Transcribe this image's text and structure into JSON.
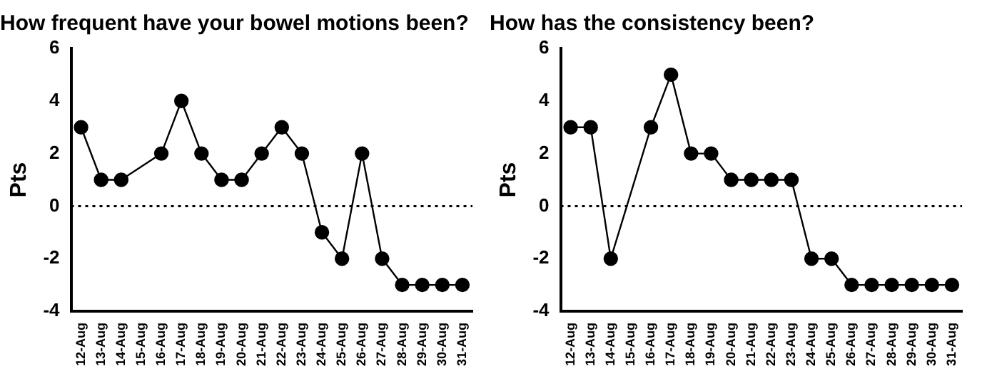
{
  "chart_data": [
    {
      "type": "line",
      "title": "How frequent have your bowel motions been?",
      "ylabel": "Pts",
      "categories": [
        "12-Aug",
        "13-Aug",
        "14-Aug",
        "15-Aug",
        "16-Aug",
        "17-Aug",
        "18-Aug",
        "19-Aug",
        "20-Aug",
        "21-Aug",
        "22-Aug",
        "23-Aug",
        "24-Aug",
        "25-Aug",
        "26-Aug",
        "27-Aug",
        "28-Aug",
        "29-Aug",
        "30-Aug",
        "31-Aug"
      ],
      "series": [
        {
          "color": "#000000",
          "values": [
            3,
            1,
            1,
            null,
            2,
            4,
            2,
            1,
            1,
            2,
            3,
            2,
            -1,
            -2,
            2,
            -2,
            -3,
            -3,
            -3,
            -3
          ]
        }
      ],
      "ylim": [
        -4,
        6
      ],
      "yticks": [
        -4,
        -2,
        0,
        2,
        4,
        6
      ],
      "grid": false,
      "legend": false,
      "marker": "circle",
      "line_style": "solid",
      "ref_lines": [
        {
          "axis": "y",
          "value": 0,
          "line_style": "dotted",
          "color": "#000000"
        }
      ]
    },
    {
      "type": "line",
      "title": "How has the consistency been?",
      "ylabel": "Pts",
      "categories": [
        "12-Aug",
        "13-Aug",
        "14-Aug",
        "15-Aug",
        "16-Aug",
        "17-Aug",
        "18-Aug",
        "19-Aug",
        "20-Aug",
        "21-Aug",
        "22-Aug",
        "23-Aug",
        "24-Aug",
        "25-Aug",
        "26-Aug",
        "27-Aug",
        "28-Aug",
        "29-Aug",
        "30-Aug",
        "31-Aug"
      ],
      "series": [
        {
          "color": "#000000",
          "values": [
            3,
            3,
            -2,
            null,
            3,
            5,
            2,
            2,
            1,
            1,
            1,
            1,
            -2,
            -2,
            -3,
            -3,
            -3,
            -3,
            -3,
            -3
          ]
        }
      ],
      "ylim": [
        -4,
        6
      ],
      "yticks": [
        -4,
        -2,
        0,
        2,
        4,
        6
      ],
      "grid": false,
      "legend": false,
      "marker": "circle",
      "line_style": "solid",
      "ref_lines": [
        {
          "axis": "y",
          "value": 0,
          "line_style": "dotted",
          "color": "#000000"
        }
      ]
    }
  ]
}
